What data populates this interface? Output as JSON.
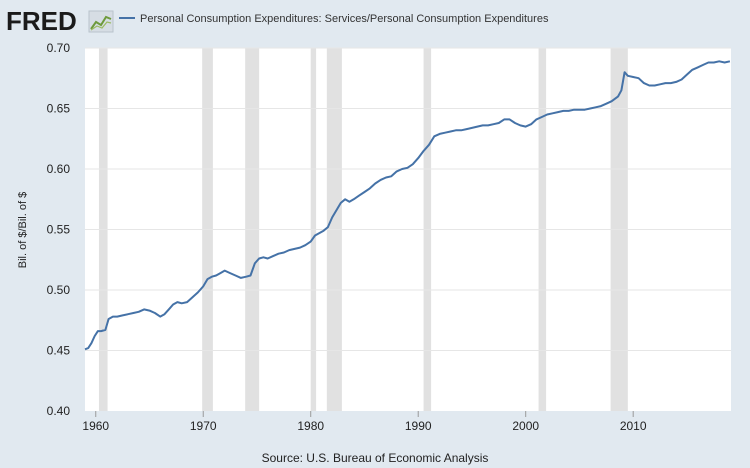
{
  "header": {
    "logo_text": "FRED",
    "logo_icon": "line-chart-icon",
    "legend_label": "Personal Consumption Expenditures: Services/Personal Consumption Expenditures"
  },
  "footer": {
    "source": "Source: U.S. Bureau of Economic Analysis"
  },
  "colors": {
    "background": "#e1e9f0",
    "plot_background": "#ffffff",
    "series": "#4572a7",
    "recession": "#e1e1e1",
    "grid": "#e6e6e6"
  },
  "chart_data": {
    "type": "line",
    "title": "",
    "xlabel": "",
    "ylabel": "Bil. of $/Bil. of $",
    "xlim": [
      1959,
      2019.1
    ],
    "ylim": [
      0.4,
      0.7
    ],
    "grid": true,
    "y_ticks": [
      0.4,
      0.45,
      0.5,
      0.55,
      0.6,
      0.65,
      0.7
    ],
    "y_tick_labels": [
      "0.40",
      "0.45",
      "0.50",
      "0.55",
      "0.60",
      "0.65",
      "0.70"
    ],
    "x_ticks": [
      1960,
      1970,
      1980,
      1990,
      2000,
      2010
    ],
    "x_tick_labels": [
      "1960",
      "1970",
      "1980",
      "1990",
      "2000",
      "2010"
    ],
    "recessions": [
      [
        1960.3,
        1961.1
      ],
      [
        1969.9,
        1970.9
      ],
      [
        1973.9,
        1975.2
      ],
      [
        1980.0,
        1980.5
      ],
      [
        1981.5,
        1982.9
      ],
      [
        1990.5,
        1991.2
      ],
      [
        2001.2,
        2001.9
      ],
      [
        2007.9,
        2009.5
      ]
    ],
    "series": [
      {
        "name": "Personal Consumption Expenditures: Services/Personal Consumption Expenditures",
        "x": [
          1959.0,
          1959.3,
          1959.6,
          1959.9,
          1960.2,
          1960.5,
          1960.9,
          1961.2,
          1961.6,
          1962.0,
          1962.5,
          1963.0,
          1963.5,
          1964.0,
          1964.5,
          1965.0,
          1965.5,
          1966.0,
          1966.4,
          1966.8,
          1967.2,
          1967.6,
          1968.0,
          1968.5,
          1969.0,
          1969.5,
          1970.0,
          1970.4,
          1970.8,
          1971.2,
          1971.6,
          1972.0,
          1972.5,
          1973.0,
          1973.5,
          1974.0,
          1974.4,
          1974.8,
          1975.2,
          1975.6,
          1976.0,
          1976.5,
          1977.0,
          1977.5,
          1978.0,
          1978.5,
          1979.0,
          1979.5,
          1980.0,
          1980.4,
          1980.8,
          1981.2,
          1981.6,
          1982.0,
          1982.4,
          1982.8,
          1983.2,
          1983.6,
          1984.0,
          1984.5,
          1985.0,
          1985.5,
          1986.0,
          1986.5,
          1987.0,
          1987.5,
          1988.0,
          1988.5,
          1989.0,
          1989.5,
          1990.0,
          1990.5,
          1991.0,
          1991.5,
          1992.0,
          1992.5,
          1993.0,
          1993.5,
          1994.0,
          1994.5,
          1995.0,
          1995.5,
          1996.0,
          1996.5,
          1997.0,
          1997.5,
          1998.0,
          1998.5,
          1999.0,
          1999.5,
          2000.0,
          2000.5,
          2001.0,
          2001.5,
          2002.0,
          2002.5,
          2003.0,
          2003.5,
          2004.0,
          2004.5,
          2005.0,
          2005.5,
          2006.0,
          2006.5,
          2007.0,
          2007.5,
          2008.0,
          2008.3,
          2008.6,
          2008.9,
          2009.2,
          2009.5,
          2010.0,
          2010.5,
          2011.0,
          2011.5,
          2012.0,
          2012.5,
          2013.0,
          2013.5,
          2014.0,
          2014.5,
          2015.0,
          2015.5,
          2016.0,
          2016.5,
          2017.0,
          2017.5,
          2018.0,
          2018.5,
          2019.0
        ],
        "values": [
          0.451,
          0.452,
          0.456,
          0.462,
          0.466,
          0.466,
          0.467,
          0.476,
          0.478,
          0.478,
          0.479,
          0.48,
          0.481,
          0.482,
          0.484,
          0.483,
          0.481,
          0.478,
          0.48,
          0.484,
          0.488,
          0.49,
          0.489,
          0.49,
          0.494,
          0.498,
          0.503,
          0.509,
          0.511,
          0.512,
          0.514,
          0.516,
          0.514,
          0.512,
          0.51,
          0.511,
          0.512,
          0.522,
          0.526,
          0.527,
          0.526,
          0.528,
          0.53,
          0.531,
          0.533,
          0.534,
          0.535,
          0.537,
          0.54,
          0.545,
          0.547,
          0.549,
          0.552,
          0.56,
          0.566,
          0.572,
          0.575,
          0.573,
          0.575,
          0.578,
          0.581,
          0.584,
          0.588,
          0.591,
          0.593,
          0.594,
          0.598,
          0.6,
          0.601,
          0.604,
          0.609,
          0.615,
          0.62,
          0.627,
          0.629,
          0.63,
          0.631,
          0.632,
          0.632,
          0.633,
          0.634,
          0.635,
          0.636,
          0.636,
          0.637,
          0.638,
          0.641,
          0.641,
          0.638,
          0.636,
          0.635,
          0.637,
          0.641,
          0.643,
          0.645,
          0.646,
          0.647,
          0.648,
          0.648,
          0.649,
          0.649,
          0.649,
          0.65,
          0.651,
          0.652,
          0.654,
          0.656,
          0.658,
          0.66,
          0.665,
          0.68,
          0.677,
          0.676,
          0.675,
          0.671,
          0.669,
          0.669,
          0.67,
          0.671,
          0.671,
          0.672,
          0.674,
          0.678,
          0.682,
          0.684,
          0.686,
          0.688,
          0.688,
          0.689,
          0.688,
          0.689
        ]
      }
    ]
  }
}
